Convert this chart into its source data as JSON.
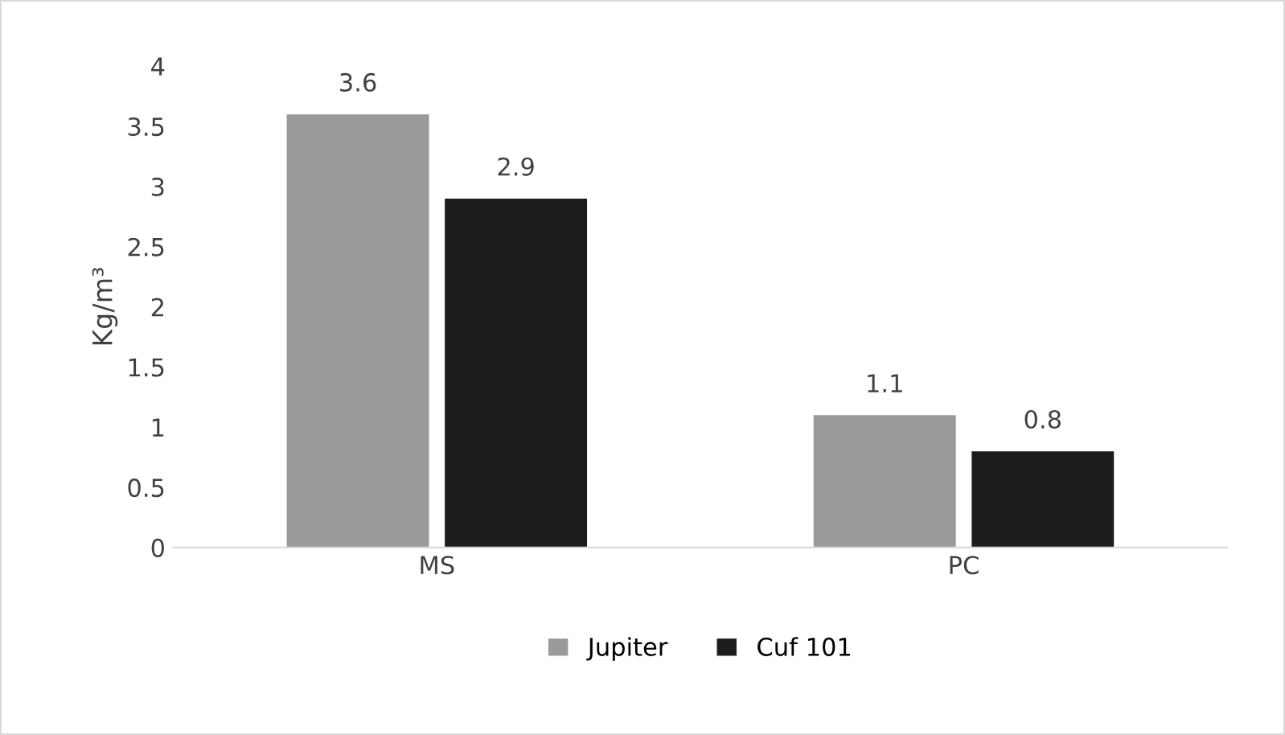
{
  "chart_data": {
    "type": "bar",
    "ylabel": "Kg/m³",
    "categories": [
      "MS",
      "PC"
    ],
    "series": [
      {
        "name": "Jupiter",
        "color": "#9a9a9a",
        "values": [
          3.6,
          1.1
        ]
      },
      {
        "name": "Cuf 101",
        "color": "#1c1c1c",
        "values": [
          2.9,
          0.8
        ]
      }
    ],
    "ylim": [
      0,
      4
    ],
    "yticks": [
      0,
      0.5,
      1,
      1.5,
      2,
      2.5,
      3,
      3.5,
      4
    ],
    "data_labels": true,
    "grid": false,
    "legend": "bottom"
  }
}
